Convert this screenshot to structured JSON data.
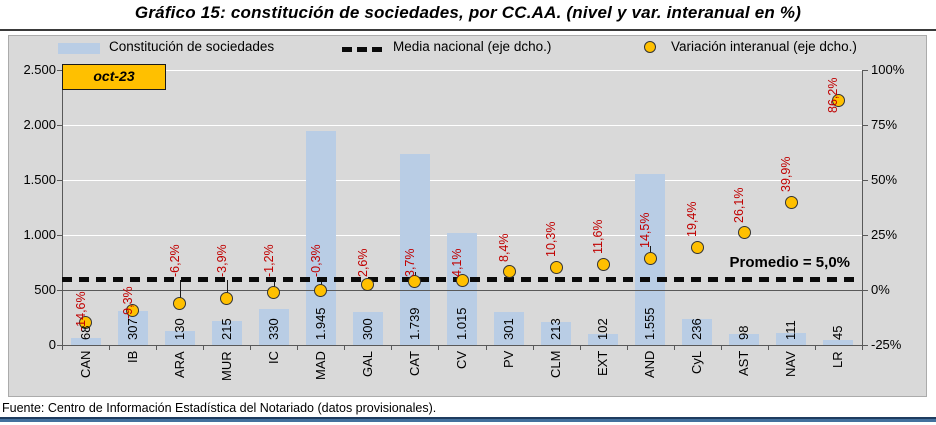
{
  "title": "Gráfico 15: constitución de sociedades, por CC.AA. (nivel y var. interanual en %)",
  "period_badge": "oct-23",
  "legend": {
    "bars_label": "Constitución de sociedades",
    "media_label": "Media nacional (eje dcho.)",
    "variacion_label": "Variación interanual (eje dcho.)"
  },
  "footer": "Fuente: Centro de Información Estadística del Notariado (datos provisionales).",
  "chart_data": {
    "type": "bar",
    "subtype": "combo bar + scatter + dashed reference line, dual axis",
    "categories": [
      "CAN",
      "IB",
      "ARA",
      "MUR",
      "IC",
      "MAD",
      "GAL",
      "CAT",
      "CV",
      "PV",
      "CLM",
      "EXT",
      "AND",
      "CyL",
      "AST",
      "NAV",
      "LR"
    ],
    "series": [
      {
        "name": "Constitución de sociedades",
        "type": "bar",
        "axis": "left",
        "values": [
          68,
          307,
          130,
          215,
          330,
          1945,
          300,
          1739,
          1015,
          301,
          213,
          102,
          1555,
          236,
          98,
          111,
          45
        ],
        "labels": [
          "68",
          "307",
          "130",
          "215",
          "330",
          "1.945",
          "300",
          "1.739",
          "1.015",
          "301",
          "213",
          "102",
          "1.555",
          "236",
          "98",
          "111",
          "45"
        ],
        "color": "#B9CDE5"
      },
      {
        "name": "Variación interanual (eje dcho.)",
        "type": "scatter",
        "axis": "right",
        "values": [
          -14.6,
          -9.3,
          -6.2,
          -3.9,
          -1.2,
          -0.3,
          2.6,
          3.7,
          4.1,
          8.4,
          10.3,
          11.6,
          14.5,
          19.4,
          26.1,
          39.9,
          86.2
        ],
        "labels": [
          "-14,6%",
          "-9,3%",
          "-6,2%",
          "-3,9%",
          "-1,2%",
          "-0,3%",
          "2,6%",
          "3,7%",
          "4,1%",
          "8,4%",
          "10,3%",
          "11,6%",
          "14,5%",
          "19,4%",
          "26,1%",
          "39,9%",
          "86,2%"
        ],
        "marker_color": "#FFC000",
        "label_color": "#C00000"
      },
      {
        "name": "Media nacional (eje dcho.)",
        "type": "line-dashed",
        "axis": "right",
        "value": 5.0,
        "color": "#0a0a0a"
      }
    ],
    "annotation": "Promedio = 5,0%",
    "left_axis": {
      "min": 0,
      "max": 2500,
      "step": 500,
      "ticks": [
        "0",
        "500",
        "1.000",
        "1.500",
        "2.000",
        "2.500"
      ]
    },
    "right_axis": {
      "min": -25,
      "max": 100,
      "step": 25,
      "ticks": [
        "-25%",
        "0%",
        "25%",
        "50%",
        "75%",
        "100%"
      ]
    },
    "plot_bg": "#D9D9D9",
    "gridline_color": "#FFFFFF",
    "legend_position": "top"
  }
}
